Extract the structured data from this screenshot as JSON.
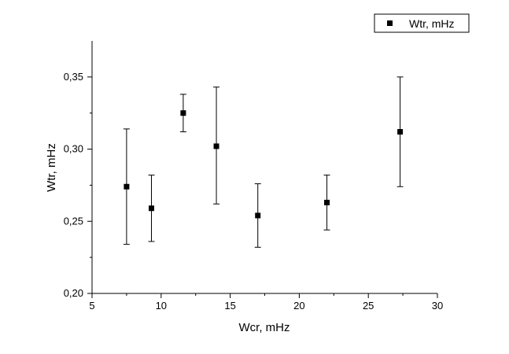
{
  "chart_data": {
    "type": "scatter",
    "title": "",
    "xlabel": "Wcr, mHz",
    "ylabel": "Wtr, mHz",
    "xlim": [
      5,
      30
    ],
    "ylim": [
      0.2,
      0.375
    ],
    "x_ticks": [
      5,
      10,
      15,
      20,
      25,
      30
    ],
    "x_tick_labels": [
      "5",
      "10",
      "15",
      "20",
      "25",
      "30"
    ],
    "y_ticks": [
      0.2,
      0.25,
      0.3,
      0.35
    ],
    "y_tick_labels": [
      "0,20",
      "0,25",
      "0,30",
      "0,35"
    ],
    "grid": false,
    "legend_position": "top-right",
    "series": [
      {
        "name": "Wtr, mHz",
        "marker": "square",
        "color": "#000000",
        "points": [
          {
            "x": 7.5,
            "y": 0.274,
            "y_low": 0.234,
            "y_high": 0.314
          },
          {
            "x": 9.3,
            "y": 0.259,
            "y_low": 0.236,
            "y_high": 0.282
          },
          {
            "x": 11.6,
            "y": 0.325,
            "y_low": 0.312,
            "y_high": 0.338
          },
          {
            "x": 14.0,
            "y": 0.302,
            "y_low": 0.262,
            "y_high": 0.343
          },
          {
            "x": 17.0,
            "y": 0.254,
            "y_low": 0.232,
            "y_high": 0.276
          },
          {
            "x": 22.0,
            "y": 0.263,
            "y_low": 0.244,
            "y_high": 0.282
          },
          {
            "x": 27.3,
            "y": 0.312,
            "y_low": 0.274,
            "y_high": 0.35
          }
        ]
      }
    ]
  }
}
